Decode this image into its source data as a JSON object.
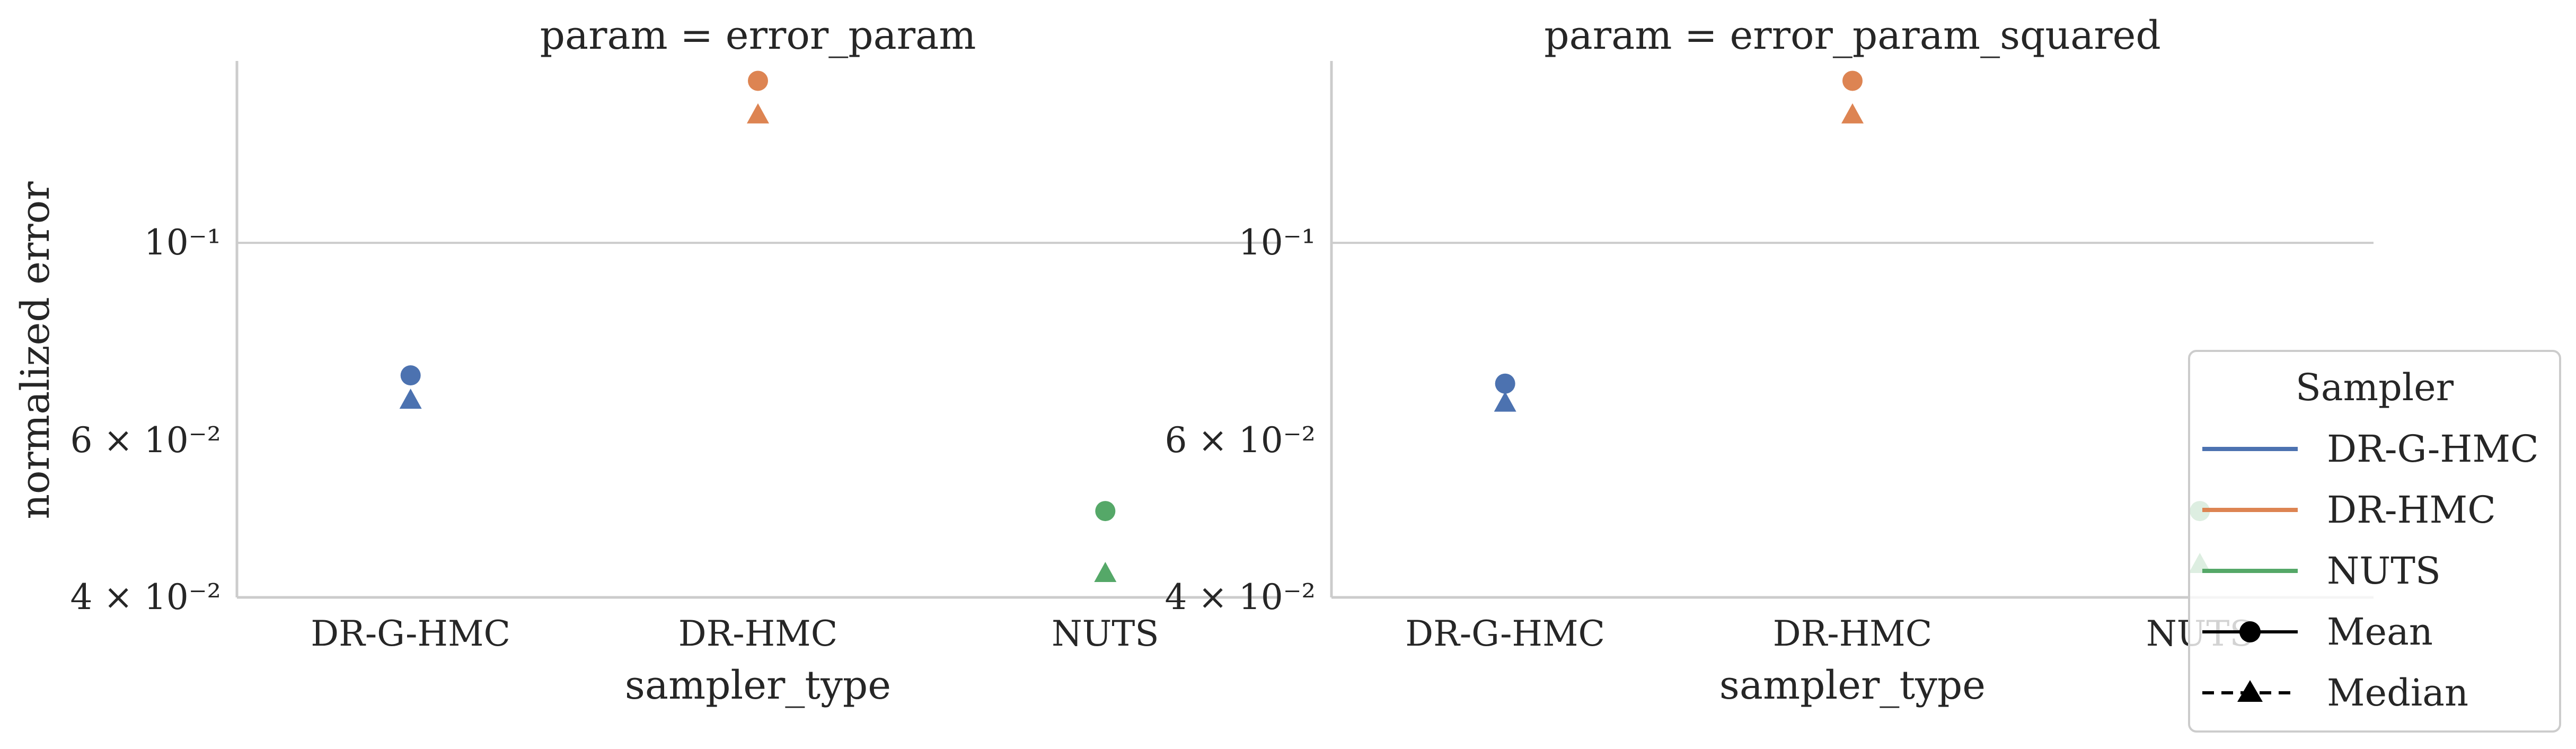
{
  "chart_data": [
    {
      "type": "scatter",
      "title": "param = error_param",
      "xlabel": "sampler_type",
      "ylabel": "normalized error",
      "categories": [
        "DR-G-HMC",
        "DR-HMC",
        "NUTS"
      ],
      "yscale": "log",
      "ylim": [
        0.04,
        0.16
      ],
      "yticks": [
        {
          "value": 0.04,
          "label": "4 × 10⁻²"
        },
        {
          "value": 0.06,
          "label": "6 × 10⁻²"
        },
        {
          "value": 0.1,
          "label": "10⁻¹"
        }
      ],
      "series": [
        {
          "name": "Mean",
          "marker": "circle",
          "values": [
            0.071,
            0.152,
            0.05
          ]
        },
        {
          "name": "Median",
          "marker": "triangle",
          "values": [
            0.0665,
            0.139,
            0.0425
          ]
        }
      ]
    },
    {
      "type": "scatter",
      "title": "param = error_param_squared",
      "xlabel": "sampler_type",
      "ylabel": "",
      "categories": [
        "DR-G-HMC",
        "DR-HMC",
        "NUTS"
      ],
      "yscale": "log",
      "ylim": [
        0.04,
        0.16
      ],
      "yticks": [
        {
          "value": 0.04,
          "label": "4 × 10⁻²"
        },
        {
          "value": 0.06,
          "label": "6 × 10⁻²"
        },
        {
          "value": 0.1,
          "label": "10⁻¹"
        }
      ],
      "series": [
        {
          "name": "Mean",
          "marker": "circle",
          "values": [
            0.0695,
            0.152,
            0.05
          ]
        },
        {
          "name": "Median",
          "marker": "triangle",
          "values": [
            0.066,
            0.139,
            0.0435
          ]
        }
      ]
    }
  ],
  "colors": {
    "DR-G-HMC": "#4c72b0",
    "DR-HMC": "#dd8452",
    "NUTS": "#55a868",
    "axis": "#cccccc",
    "text": "#262626"
  },
  "grid": {
    "y_major": true
  },
  "legend": {
    "title": "Sampler",
    "placement": "right",
    "entries": [
      {
        "label": "DR-G-HMC",
        "kind": "line",
        "color": "#4c72b0"
      },
      {
        "label": "DR-HMC",
        "kind": "line",
        "color": "#dd8452"
      },
      {
        "label": "NUTS",
        "kind": "line",
        "color": "#55a868"
      },
      {
        "label": "Mean",
        "kind": "marker",
        "marker": "circle",
        "linestyle": "solid",
        "color": "#000000"
      },
      {
        "label": "Median",
        "kind": "marker",
        "marker": "triangle",
        "linestyle": "dashed",
        "color": "#000000"
      }
    ]
  }
}
